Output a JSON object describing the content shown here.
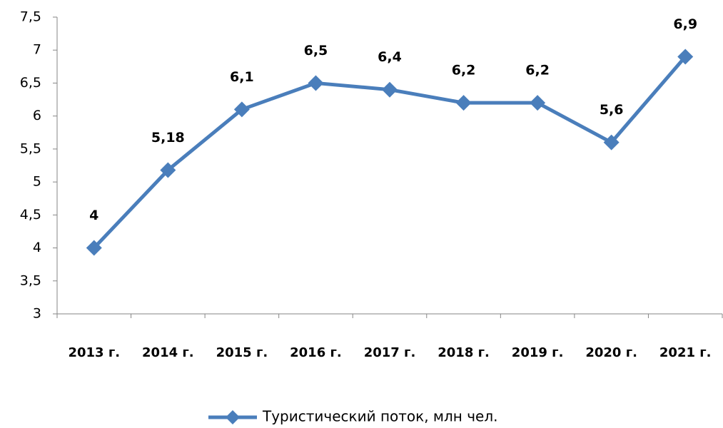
{
  "chart_data": {
    "type": "line",
    "categories": [
      "2013 г.",
      "2014 г.",
      "2015 г.",
      "2016 г.",
      "2017 г.",
      "2018 г.",
      "2019 г.",
      "2020 г.",
      "2021 г."
    ],
    "series": [
      {
        "name": "Туристический поток, млн чел.",
        "color": "#4a7ebb",
        "values": [
          4,
          5.18,
          6.1,
          6.5,
          6.4,
          6.2,
          6.2,
          5.6,
          6.9
        ],
        "value_labels": [
          "4",
          "5,18",
          "6,1",
          "6,5",
          "6,4",
          "6,2",
          "6,2",
          "5,6",
          "6,9"
        ]
      }
    ],
    "ylim": [
      3,
      7.5
    ],
    "yticks": [
      3,
      {
        "value": 3.5,
        "label": "3,5"
      },
      4,
      {
        "value": 4.5,
        "label": "4,5"
      },
      5,
      {
        "value": 5.5,
        "label": "5,5"
      },
      6,
      {
        "value": 6.5,
        "label": "6,5"
      },
      7,
      {
        "value": 7.5,
        "label": "7,5"
      }
    ],
    "grid": false,
    "legend": "bottom"
  }
}
